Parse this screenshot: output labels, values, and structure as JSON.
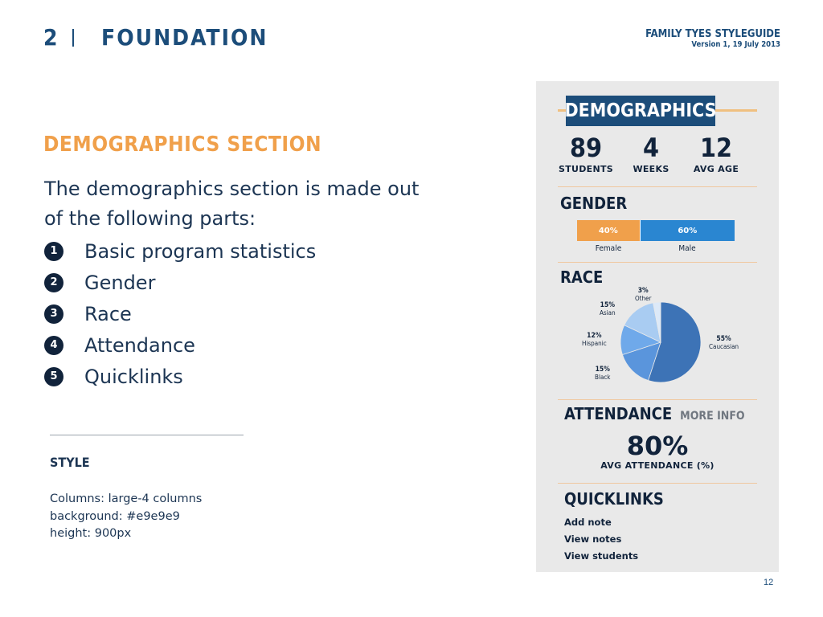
{
  "header": {
    "section_number": "2",
    "section_title": "FOUNDATION",
    "guide_title": "FAMILY TYES STYLEGUIDE",
    "guide_version": "Version 1, 19 July 2013"
  },
  "content": {
    "heading": "DEMOGRAPHICS SECTION",
    "intro": "The demographics section is made out of the following parts:",
    "parts": [
      {
        "num": "1",
        "label": "Basic program statistics"
      },
      {
        "num": "2",
        "label": "Gender"
      },
      {
        "num": "3",
        "label": "Race"
      },
      {
        "num": "4",
        "label": "Attendance"
      },
      {
        "num": "5",
        "label": "Quicklinks"
      }
    ],
    "style_label": "STYLE",
    "style_lines": [
      "Columns: large-4 columns",
      "background: #e9e9e9",
      "height: 900px"
    ]
  },
  "page_number": "12",
  "panel": {
    "background": "#e9e9e9",
    "title": "DEMOGRAPHICS",
    "stats": [
      {
        "value": "89",
        "label": "STUDENTS"
      },
      {
        "value": "4",
        "label": "WEEKS"
      },
      {
        "value": "12",
        "label": "AVG AGE"
      }
    ],
    "gender": {
      "heading": "GENDER",
      "segments": [
        {
          "name": "Female",
          "percent": 40,
          "label": "40%",
          "color": "#f0a04b"
        },
        {
          "name": "Male",
          "percent": 60,
          "label": "60%",
          "color": "#2a86d1"
        }
      ]
    },
    "race": {
      "heading": "RACE",
      "slices": [
        {
          "name": "Caucasian",
          "percent": 55,
          "label": "55%"
        },
        {
          "name": "Black",
          "percent": 15,
          "label": "15%"
        },
        {
          "name": "Hispanic",
          "percent": 12,
          "label": "12%"
        },
        {
          "name": "Asian",
          "percent": 15,
          "label": "15%"
        },
        {
          "name": "Other",
          "percent": 3,
          "label": "3%"
        }
      ]
    },
    "attendance": {
      "heading": "ATTENDANCE",
      "more_info": "MORE INFO",
      "value": "80%",
      "label": "AVG ATTENDANCE (%)"
    },
    "quicklinks": {
      "heading": "QUICKLINKS",
      "links": [
        "Add note",
        "View notes",
        "View students"
      ]
    }
  },
  "colors": {
    "navy": "#1c4d7a",
    "dark_navy": "#11233b",
    "orange": "#f0a04b",
    "blue": "#2a86d1"
  }
}
